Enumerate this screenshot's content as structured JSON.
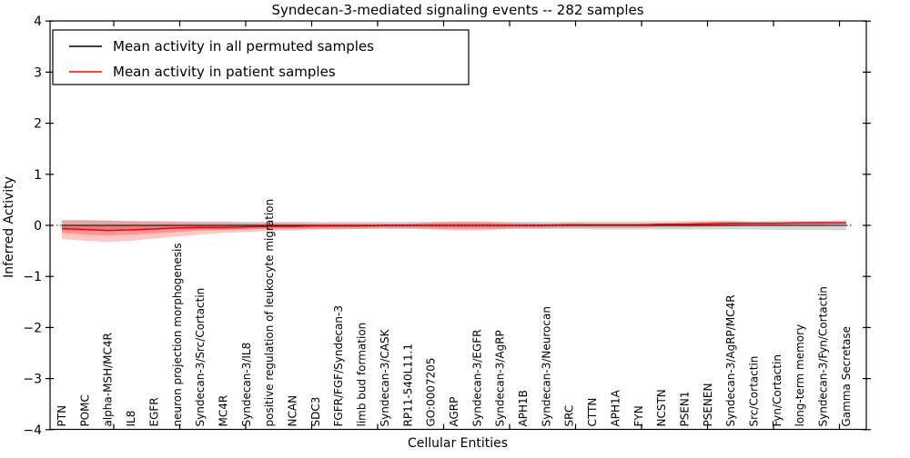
{
  "window": {
    "title": "Syndecan-3-mediated signaling events -- 282 samples"
  },
  "legend": {
    "items": [
      {
        "label": "Mean activity in all permuted samples",
        "color": "#000000"
      },
      {
        "label": "Mean activity in patient samples",
        "color": "#ff0000"
      }
    ]
  },
  "chart_data": {
    "type": "line",
    "title": "Syndecan-3-mediated signaling events -- 282 samples",
    "xlabel": "Cellular Entities",
    "ylabel": "Inferred Activity",
    "ylim": [
      -4,
      4
    ],
    "yticks": [
      4,
      3,
      2,
      1,
      0,
      -1,
      -2,
      -3,
      -4
    ],
    "ytick_labels": [
      "4",
      "3",
      "2",
      "1",
      "0",
      "−1",
      "−2",
      "−3",
      "−4"
    ],
    "grid": false,
    "legend_position": "upper left",
    "zero_line": {
      "y": 0,
      "style": "dotted",
      "color": "#000000"
    },
    "categories": [
      "PTN",
      "POMC",
      "alpha-MSH/MC4R",
      "IL8",
      "EGFR",
      "neuron projection morphogenesis",
      "Syndecan-3/Src/Cortactin",
      "MC4R",
      "Syndecan-3/IL8",
      "positive regulation of leukocyte migration",
      "NCAN",
      "SDC3",
      "FGFR/FGF/Syndecan-3",
      "limb bud formation",
      "Syndecan-3/CASK",
      "RP11-540L11.1",
      "GO:0007205",
      "AGRP",
      "Syndecan-3/EGFR",
      "Syndecan-3/AgRP",
      "APH1B",
      "Syndecan-3/Neurocan",
      "SRC",
      "CTTN",
      "APH1A",
      "FYN",
      "NCSTN",
      "PSEN1",
      "PSENEN",
      "Syndecan-3/AgRP/MC4R",
      "Src/Cortactin",
      "Fyn/Cortactin",
      "long-term memory",
      "Syndecan-3/Fyn/Cortactin",
      "Gamma Secretase"
    ],
    "series": [
      {
        "name": "Mean activity in all permuted samples",
        "color": "#000000",
        "line_width": 1,
        "values": [
          0,
          0,
          0,
          0,
          0,
          0,
          0,
          0,
          0,
          0,
          0,
          0,
          0,
          0,
          0,
          0,
          0,
          0,
          0,
          0,
          0,
          0,
          0,
          0,
          0,
          0,
          0,
          0,
          0,
          0,
          0,
          0,
          0,
          0,
          0
        ],
        "bands": [
          {
            "color": "#b0b0b0",
            "opacity": 0.5,
            "upper": [
              0.1,
              0.1,
              0.1,
              0.09,
              0.09,
              0.08,
              0.08,
              0.08,
              0.07,
              0.07,
              0.07,
              0.07,
              0.07,
              0.07,
              0.07,
              0.07,
              0.07,
              0.07,
              0.07,
              0.07,
              0.07,
              0.07,
              0.07,
              0.08,
              0.08,
              0.08,
              0.08,
              0.08,
              0.08,
              0.08,
              0.08,
              0.09,
              0.09,
              0.09,
              0.1
            ],
            "lower": [
              -0.1,
              -0.1,
              -0.1,
              -0.09,
              -0.09,
              -0.08,
              -0.08,
              -0.08,
              -0.07,
              -0.07,
              -0.07,
              -0.07,
              -0.07,
              -0.07,
              -0.07,
              -0.07,
              -0.07,
              -0.07,
              -0.07,
              -0.07,
              -0.07,
              -0.07,
              -0.07,
              -0.08,
              -0.08,
              -0.08,
              -0.08,
              -0.08,
              -0.08,
              -0.08,
              -0.08,
              -0.09,
              -0.09,
              -0.09,
              -0.1
            ]
          }
        ]
      },
      {
        "name": "Mean activity in patient samples",
        "color": "#ff0000",
        "line_width": 1.5,
        "values": [
          -0.06,
          -0.08,
          -0.1,
          -0.09,
          -0.07,
          -0.05,
          -0.04,
          -0.04,
          -0.03,
          -0.02,
          -0.02,
          -0.01,
          -0.01,
          -0.01,
          0.0,
          0.0,
          0.0,
          0.0,
          0.0,
          0.0,
          0.0,
          0.0,
          0.01,
          0.01,
          0.01,
          0.01,
          0.02,
          0.02,
          0.03,
          0.04,
          0.04,
          0.04,
          0.05,
          0.05,
          0.05
        ],
        "bands": [
          {
            "color": "#ff0000",
            "opacity": 0.22,
            "upper": [
              0.1,
              0.1,
              0.09,
              0.08,
              0.07,
              0.07,
              0.06,
              0.06,
              0.05,
              0.05,
              0.05,
              0.04,
              0.04,
              0.04,
              0.04,
              0.04,
              0.06,
              0.08,
              0.08,
              0.06,
              0.05,
              0.04,
              0.05,
              0.04,
              0.04,
              0.04,
              0.05,
              0.06,
              0.08,
              0.09,
              0.07,
              0.07,
              0.07,
              0.08,
              0.08
            ],
            "lower": [
              -0.27,
              -0.3,
              -0.33,
              -0.3,
              -0.26,
              -0.22,
              -0.18,
              -0.15,
              -0.13,
              -0.11,
              -0.1,
              -0.09,
              -0.08,
              -0.07,
              -0.06,
              -0.06,
              -0.08,
              -0.1,
              -0.1,
              -0.08,
              -0.06,
              -0.06,
              -0.05,
              -0.05,
              -0.05,
              -0.05,
              -0.04,
              -0.04,
              -0.03,
              -0.02,
              0.0,
              0.0,
              0.01,
              0.01,
              0.02
            ]
          },
          {
            "color": "#ff0000",
            "opacity": 0.25,
            "upper": [
              0.01,
              0.0,
              -0.01,
              -0.01,
              -0.01,
              0.0,
              0.01,
              0.01,
              0.01,
              0.01,
              0.01,
              0.01,
              0.01,
              0.01,
              0.02,
              0.02,
              0.03,
              0.04,
              0.04,
              0.03,
              0.02,
              0.02,
              0.03,
              0.02,
              0.02,
              0.02,
              0.03,
              0.04,
              0.05,
              0.06,
              0.05,
              0.05,
              0.06,
              0.06,
              0.06
            ],
            "lower": [
              -0.15,
              -0.18,
              -0.2,
              -0.18,
              -0.16,
              -0.13,
              -0.1,
              -0.09,
              -0.08,
              -0.06,
              -0.06,
              -0.05,
              -0.04,
              -0.04,
              -0.03,
              -0.03,
              -0.04,
              -0.05,
              -0.05,
              -0.04,
              -0.03,
              -0.03,
              -0.02,
              -0.02,
              -0.02,
              -0.02,
              -0.01,
              -0.01,
              0.0,
              0.01,
              0.02,
              0.02,
              0.03,
              0.03,
              0.04
            ]
          }
        ]
      }
    ]
  }
}
